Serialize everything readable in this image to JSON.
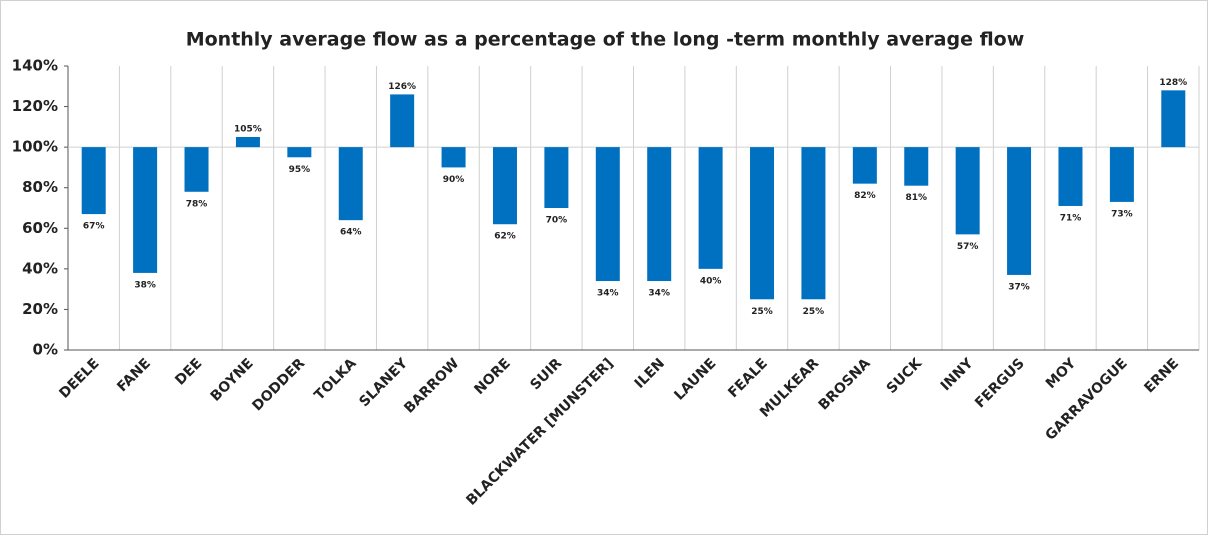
{
  "chart_data": {
    "type": "bar",
    "title": "Monthly average flow as a percentage of the long -term monthly average flow",
    "categories": [
      "DEELE",
      "FANE",
      "DEE",
      "BOYNE",
      "DODDER",
      "TOLKA",
      "SLANEY",
      "BARROW",
      "NORE",
      "SUIR",
      "BLACKWATER [MUNSTER]",
      "ILEN",
      "LAUNE",
      "FEALE",
      "MULKEAR",
      "BROSNA",
      "SUCK",
      "INNY",
      "FERGUS",
      "MOY",
      "GARRAVOGUE",
      "ERNE"
    ],
    "values": [
      67,
      38,
      78,
      105,
      95,
      64,
      126,
      90,
      62,
      70,
      34,
      34,
      40,
      25,
      25,
      82,
      81,
      57,
      37,
      71,
      73,
      128
    ],
    "value_labels": [
      "67%",
      "38%",
      "78%",
      "105%",
      "95%",
      "64%",
      "126%",
      "90%",
      "62%",
      "70%",
      "34%",
      "34%",
      "40%",
      "25%",
      "25%",
      "82%",
      "81%",
      "57%",
      "37%",
      "71%",
      "73%",
      "128%"
    ],
    "color": "#0070c0",
    "baseline": 100,
    "ylim": [
      0,
      140
    ],
    "yticks": [
      {
        "value": 0,
        "label": "0%"
      },
      {
        "value": 20,
        "label": "20%"
      },
      {
        "value": 40,
        "label": "40%"
      },
      {
        "value": 60,
        "label": "60%"
      },
      {
        "value": 80,
        "label": "80%"
      },
      {
        "value": 100,
        "label": "100%"
      },
      {
        "value": 120,
        "label": "120%"
      },
      {
        "value": 140,
        "label": "140%"
      }
    ],
    "grid": "vertical"
  }
}
